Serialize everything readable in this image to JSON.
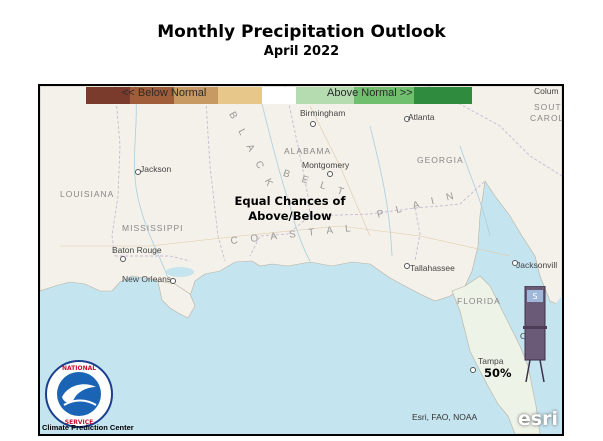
{
  "header": {
    "title": "Monthly Precipitation Outlook",
    "subtitle": "April 2022"
  },
  "legend": {
    "below_label": "<<   Below Normal",
    "above_label": "Above Normal   >>",
    "colors": [
      "#8a3a2a",
      "#a86a3a",
      "#c8a064",
      "#e9c889",
      "#ffffff",
      "#b2d9b0",
      "#6cbf6c",
      "#2e8b3d"
    ]
  },
  "map": {
    "cities": {
      "birmingham": "Birmingham",
      "atlanta": "Atlanta",
      "montgomery": "Montgomery",
      "jackson": "Jackson",
      "baton_rouge": "Baton Rouge",
      "new_orleans": "New Orleans",
      "tallahassee": "Tallahassee",
      "jacksonville": "Jacksonvill",
      "tampa": "Tampa",
      "columbia": "Colum",
      "orlando": "O"
    },
    "states": {
      "alabama": "ALABAMA",
      "georgia": "GEORGIA",
      "louisiana": "LOUISIANA",
      "mississippi": "MISSISSIPPI",
      "florida": "FLORIDA",
      "south_carolina_1": "SOUTH",
      "south_carolina_2": "CAROLI"
    },
    "regions": {
      "black_belt_1": "B L A C K",
      "black_belt_2": "B E L T",
      "coastal_plain_1": "C O A S T A L",
      "coastal_plain_2": "P L A I N"
    },
    "callouts": {
      "equal_chances_1": "Equal Chances of",
      "equal_chances_2": "Above/Below",
      "tampa_pct": "50%"
    },
    "credits": {
      "attribution": "Esri, FAO, NOAA",
      "esri_logo": "esri",
      "cpc": "Climate Prediction Center",
      "nws_logo_text": "NATIONAL WEATHER SERVICE"
    },
    "icons": [
      "nws-logo-icon",
      "rain-gauge-icon"
    ],
    "colors": {
      "ocean": "#c8e6f0",
      "land": "#f3f1ea",
      "florida_wet": "#d7ecd3"
    }
  }
}
